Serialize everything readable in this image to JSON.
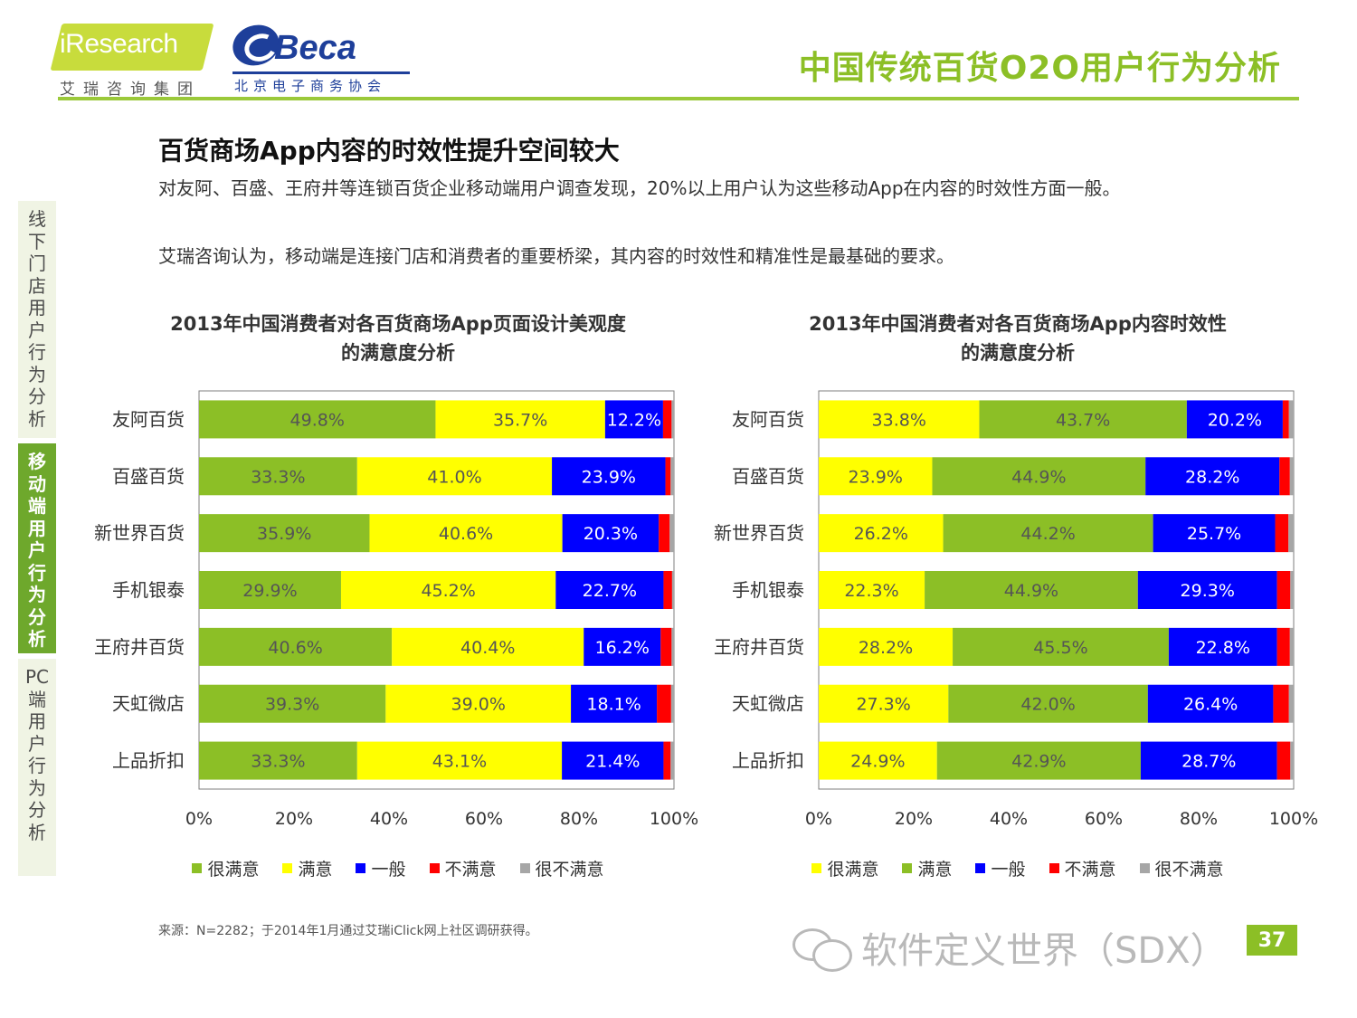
{
  "header": {
    "logo_iresearch": "iResearch",
    "logo_iresearch_sub": "艾瑞咨询集团",
    "logo_beca": "Beca",
    "logo_beca_sub": "北京电子商务协会",
    "title": "中国传统百货O2O用户行为分析"
  },
  "sidebar": {
    "items": [
      {
        "label": "线下门店用户行为分析",
        "active": false
      },
      {
        "label": "移动端用户行为分析",
        "active": true
      },
      {
        "label": "PC端用户行为分析",
        "active": false
      }
    ]
  },
  "section": {
    "title": "百货商场App内容的时效性提升空间较大",
    "para1": "对友阿、百盛、王府井等连锁百货企业移动端用户调查发现，20%以上用户认为这些移动App在内容的时效性方面一般。",
    "para2": "艾瑞咨询认为，移动端是连接门店和消费者的重要桥梁，其内容的时效性和精准性是最基础的要求。"
  },
  "chart_data": [
    {
      "type": "bar",
      "orientation": "horizontal",
      "stacked": true,
      "title_line1": "2013年中国消费者对各百货商场App页面设计美观度",
      "title_line2": "的满意度分析",
      "categories": [
        "友阿百货",
        "百盛百货",
        "新世界百货",
        "手机银泰",
        "王府井百货",
        "天虹微店",
        "上品折扣"
      ],
      "series": [
        {
          "name": "很满意",
          "color": "#8cbf26",
          "values": [
            49.8,
            33.3,
            35.9,
            29.9,
            40.6,
            39.3,
            33.3
          ]
        },
        {
          "name": "满意",
          "color": "#ffff00",
          "values": [
            35.7,
            41.0,
            40.6,
            45.2,
            40.4,
            39.0,
            43.1
          ]
        },
        {
          "name": "一般",
          "color": "#0000ff",
          "values": [
            12.2,
            23.9,
            20.3,
            22.7,
            16.2,
            18.1,
            21.4
          ]
        },
        {
          "name": "不满意",
          "color": "#ff0000",
          "values": [
            1.8,
            1.1,
            2.3,
            1.8,
            2.3,
            3.0,
            1.5
          ]
        },
        {
          "name": "很不满意",
          "color": "#a6a6a6",
          "values": [
            0.5,
            0.7,
            0.9,
            0.4,
            0.5,
            0.6,
            0.7
          ]
        }
      ],
      "labels": [
        [
          "49.8%",
          "35.7%",
          "12.2%"
        ],
        [
          "33.3%",
          "41.0%",
          "23.9%"
        ],
        [
          "35.9%",
          "40.6%",
          "20.3%"
        ],
        [
          "29.9%",
          "45.2%",
          "22.7%"
        ],
        [
          "40.6%",
          "40.4%",
          "16.2%"
        ],
        [
          "39.3%",
          "39.0%",
          "18.1%"
        ],
        [
          "33.3%",
          "43.1%",
          "21.4%"
        ]
      ],
      "xticks": [
        "0%",
        "20%",
        "40%",
        "60%",
        "80%",
        "100%"
      ],
      "xlim": [
        0,
        100
      ],
      "legend_position": "bottom",
      "grid": false
    },
    {
      "type": "bar",
      "orientation": "horizontal",
      "stacked": true,
      "title_line1": "2013年中国消费者对各百货商场App内容时效性",
      "title_line2": "的满意度分析",
      "categories": [
        "友阿百货",
        "百盛百货",
        "新世界百货",
        "手机银泰",
        "王府井百货",
        "天虹微店",
        "上品折扣"
      ],
      "series": [
        {
          "name": "很满意",
          "color": "#ffff00",
          "values": [
            33.8,
            23.9,
            26.2,
            22.3,
            28.2,
            27.3,
            24.9
          ]
        },
        {
          "name": "满意",
          "color": "#8cbf26",
          "values": [
            43.7,
            44.9,
            44.2,
            44.9,
            45.5,
            42.0,
            42.9
          ]
        },
        {
          "name": "一般",
          "color": "#0000ff",
          "values": [
            20.2,
            28.2,
            25.7,
            29.3,
            22.8,
            26.4,
            28.7
          ]
        },
        {
          "name": "不满意",
          "color": "#ff0000",
          "values": [
            1.3,
            2.2,
            2.8,
            2.8,
            2.7,
            3.3,
            2.8
          ]
        },
        {
          "name": "很不满意",
          "color": "#a6a6a6",
          "values": [
            1.0,
            0.8,
            1.1,
            0.7,
            0.8,
            1.0,
            0.7
          ]
        }
      ],
      "labels": [
        [
          "33.8%",
          "43.7%",
          "20.2%"
        ],
        [
          "23.9%",
          "44.9%",
          "28.2%"
        ],
        [
          "26.2%",
          "44.2%",
          "25.7%"
        ],
        [
          "22.3%",
          "44.9%",
          "29.3%"
        ],
        [
          "28.2%",
          "45.5%",
          "22.8%"
        ],
        [
          "27.3%",
          "42.0%",
          "26.4%"
        ],
        [
          "24.9%",
          "42.9%",
          "28.7%"
        ]
      ],
      "xticks": [
        "0%",
        "20%",
        "40%",
        "60%",
        "80%",
        "100%"
      ],
      "xlim": [
        0,
        100
      ],
      "legend_position": "bottom",
      "grid": false
    }
  ],
  "footer": {
    "source": "来源：N=2282；于2014年1月通过艾瑞iClick网上社区调研获得。",
    "watermark": "软件定义世界（SDX）",
    "page_number": "37"
  }
}
